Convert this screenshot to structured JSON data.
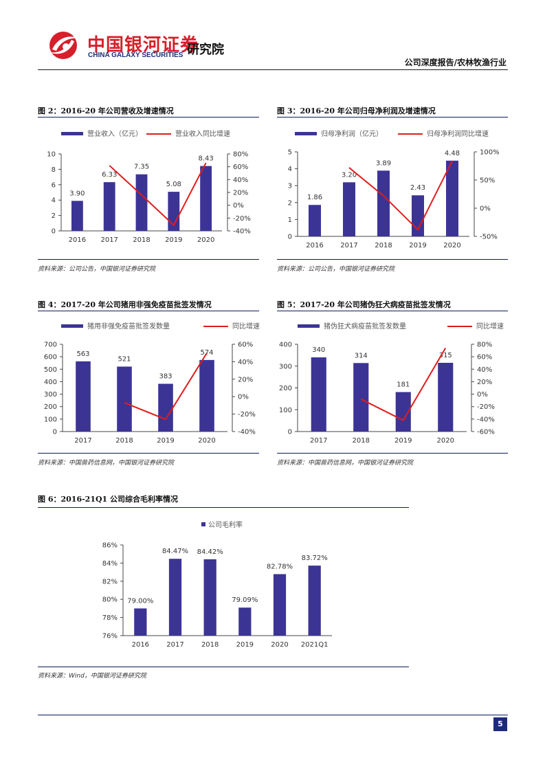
{
  "header": {
    "logo_cn": "中国银河证券",
    "logo_en": "CHINA GALAXY SECURITIES",
    "institute": "研究院",
    "report_type": "公司深度报告/农林牧渔行业"
  },
  "figures": {
    "fig2": {
      "title": "图 2：2016-20 年公司营收及增速情况",
      "source": "资料来源：公司公告，中国银河证券研究院"
    },
    "fig3": {
      "title": "图 3：2016-20 年公司归母净利润及增速情况",
      "source": "资料来源：公司公告，中国银河证券研究院"
    },
    "fig4": {
      "title": "图 4：2017-20 年公司猪用非强免疫苗批签发情况",
      "source": "资料来源：中国兽药信息网，中国银河证券研究院"
    },
    "fig5": {
      "title": "图 5：2017-20 年公司猪伪狂犬病疫苗批签发情况",
      "source": "资料来源：中国兽药信息网，中国银河证券研究院"
    },
    "fig6": {
      "title": "图 6：2016-21Q1 公司综合毛利率情况",
      "source": "资料来源：Wind，中国银河证券研究院"
    }
  },
  "page_number": "5",
  "colors": {
    "bar": "#3c3495",
    "line": "#e01c1c",
    "rule": "#0d1a5c",
    "logo_red": "#d71e2b",
    "logo_blue": "#1c2e78"
  },
  "chart_data": [
    {
      "id": "fig2",
      "type": "bar",
      "categories": [
        "2016",
        "2017",
        "2018",
        "2019",
        "2020"
      ],
      "series": [
        {
          "name": "营业收入（亿元）",
          "values": [
            3.9,
            6.33,
            7.35,
            5.08,
            8.43
          ],
          "labels": [
            "3.90",
            "6.33",
            "7.35",
            "5.08",
            "8.43"
          ],
          "axis": "left"
        },
        {
          "name": "营业收入同比增速",
          "type": "line",
          "values": [
            null,
            62,
            16,
            -31,
            66
          ],
          "axis": "right"
        }
      ],
      "ylim": [
        0,
        10
      ],
      "yticks": [
        0,
        2,
        4,
        6,
        8,
        10
      ],
      "ytick_labels": [
        "0",
        "2",
        "4",
        "6",
        "8",
        "10"
      ],
      "y2lim": [
        -40,
        80
      ],
      "y2ticks": [
        -40,
        -20,
        0,
        20,
        40,
        60,
        80
      ],
      "y2tick_labels": [
        "-40%",
        "-20%",
        "0%",
        "20%",
        "40%",
        "60%",
        "80%"
      ],
      "legend": "top"
    },
    {
      "id": "fig3",
      "type": "bar",
      "categories": [
        "2016",
        "2017",
        "2018",
        "2019",
        "2020"
      ],
      "series": [
        {
          "name": "归母净利润（亿元）",
          "values": [
            1.86,
            3.2,
            3.89,
            2.43,
            4.48
          ],
          "labels": [
            "1.86",
            "3.20",
            "3.89",
            "2.43",
            "4.48"
          ],
          "axis": "left"
        },
        {
          "name": "归母净利润同比增速",
          "type": "line",
          "values": [
            null,
            72,
            22,
            -38,
            84
          ],
          "axis": "right"
        }
      ],
      "ylim": [
        0,
        5
      ],
      "yticks": [
        0,
        1,
        2,
        3,
        4,
        5
      ],
      "ytick_labels": [
        "0",
        "1",
        "2",
        "3",
        "4",
        "5"
      ],
      "y2lim": [
        -50,
        100
      ],
      "y2ticks": [
        -50,
        0,
        50,
        100
      ],
      "y2tick_labels": [
        "-50%",
        "0%",
        "50%",
        "100%"
      ],
      "legend": "top"
    },
    {
      "id": "fig4",
      "type": "bar",
      "categories": [
        "2017",
        "2018",
        "2019",
        "2020"
      ],
      "series": [
        {
          "name": "猪用非强免疫苗批签发数量",
          "values": [
            563,
            521,
            383,
            574
          ],
          "labels": [
            "563",
            "521",
            "383",
            "574"
          ],
          "axis": "left"
        },
        {
          "name": "同比增速",
          "type": "line",
          "values": [
            null,
            -7,
            -26,
            50
          ],
          "axis": "right"
        }
      ],
      "ylim": [
        0,
        700
      ],
      "yticks": [
        0,
        100,
        200,
        300,
        400,
        500,
        600,
        700
      ],
      "ytick_labels": [
        "0",
        "100",
        "200",
        "300",
        "400",
        "500",
        "600",
        "700"
      ],
      "y2lim": [
        -40,
        60
      ],
      "y2ticks": [
        -40,
        -20,
        0,
        20,
        40,
        60
      ],
      "y2tick_labels": [
        "-40%",
        "-20%",
        "0%",
        "20%",
        "40%",
        "60%"
      ],
      "legend": "top"
    },
    {
      "id": "fig5",
      "type": "bar",
      "categories": [
        "2017",
        "2018",
        "2019",
        "2020"
      ],
      "series": [
        {
          "name": "猪伪狂犬病疫苗批签发数量",
          "values": [
            340,
            314,
            181,
            315
          ],
          "labels": [
            "340",
            "314",
            "181",
            "315"
          ],
          "axis": "left"
        },
        {
          "name": "同比增速",
          "type": "line",
          "values": [
            null,
            -8,
            -42,
            74
          ],
          "axis": "right"
        }
      ],
      "ylim": [
        0,
        400
      ],
      "yticks": [
        0,
        100,
        200,
        300,
        400
      ],
      "ytick_labels": [
        "0",
        "100",
        "200",
        "300",
        "400"
      ],
      "y2lim": [
        -60,
        80
      ],
      "y2ticks": [
        -60,
        -40,
        -20,
        0,
        20,
        40,
        60,
        80
      ],
      "y2tick_labels": [
        "-60%",
        "-40%",
        "-20%",
        "0%",
        "20%",
        "40%",
        "60%",
        "80%"
      ],
      "legend": "top"
    },
    {
      "id": "fig6",
      "type": "bar",
      "categories": [
        "2016",
        "2017",
        "2018",
        "2019",
        "2020",
        "2021Q1"
      ],
      "series": [
        {
          "name": "公司毛利率",
          "values": [
            79.0,
            84.47,
            84.42,
            79.09,
            82.78,
            83.72
          ],
          "labels": [
            "79.00%",
            "84.47%",
            "84.42%",
            "79.09%",
            "82.78%",
            "83.72%"
          ],
          "axis": "left"
        }
      ],
      "ylim": [
        76,
        86
      ],
      "yticks": [
        76,
        78,
        80,
        82,
        84,
        86
      ],
      "ytick_labels": [
        "76%",
        "78%",
        "80%",
        "82%",
        "84%",
        "86%"
      ],
      "legend": "top"
    }
  ]
}
